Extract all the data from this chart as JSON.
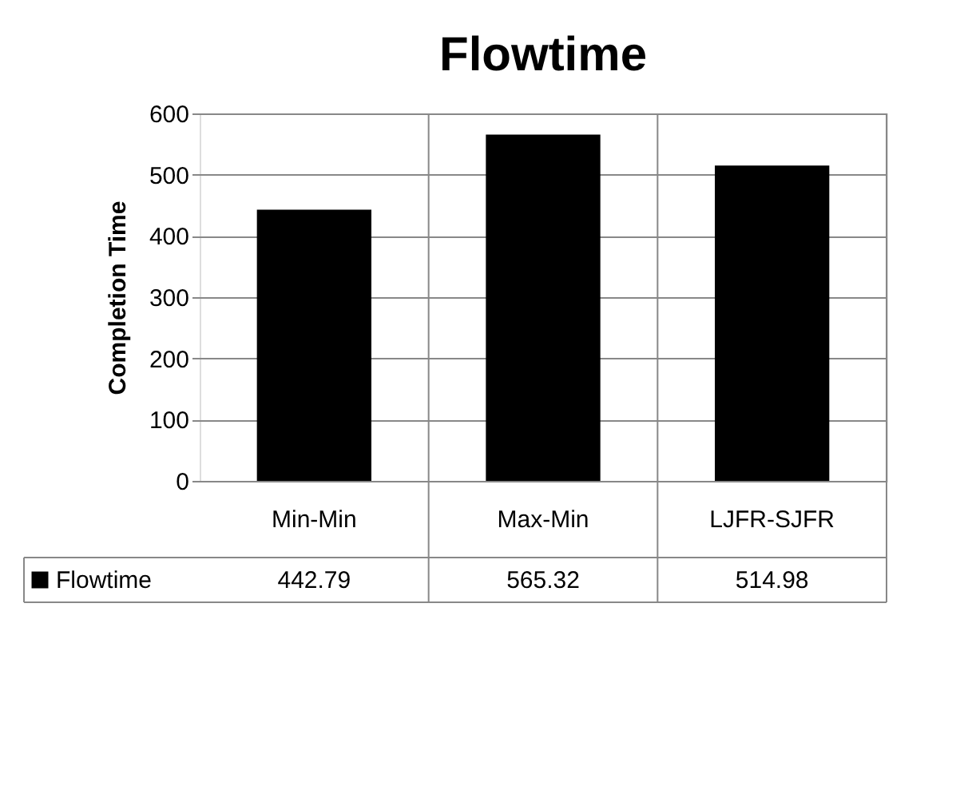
{
  "chart_data": {
    "type": "bar",
    "title": "Flowtime",
    "ylabel": "Completion Time",
    "categories": [
      "Min-Min",
      "Max-Min",
      "LJFR-SJFR"
    ],
    "series": [
      {
        "name": "Flowtime",
        "color": "#000000",
        "values": [
          442.79,
          565.32,
          514.98
        ]
      }
    ],
    "ylim": [
      0,
      600
    ],
    "yticks": [
      0,
      100,
      200,
      300,
      400,
      500,
      600
    ],
    "grid": "y",
    "data_labels": true,
    "legend": "bottom"
  }
}
